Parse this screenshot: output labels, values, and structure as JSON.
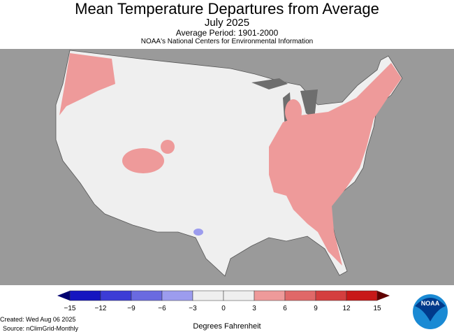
{
  "title": "Mean Temperature Departures from Average",
  "subtitle": "July 2025",
  "period": "Average Period: 1901-2000",
  "org": "NOAA's National Centers for Environmental Information",
  "legend": {
    "ticks": [
      "−15",
      "−12",
      "−9",
      "−6",
      "−3",
      "0",
      "3",
      "6",
      "9",
      "12",
      "15"
    ],
    "colors": [
      "#1515c0",
      "#3c3cd6",
      "#6a6ae0",
      "#9c9cee",
      "#efefef",
      "#efefef",
      "#ee9a9a",
      "#e06868",
      "#d43e3e",
      "#c81818"
    ],
    "low_arrow": "#000070",
    "high_arrow": "#600000",
    "units": "Degrees Fahrenheit"
  },
  "created": "Created: Wed Aug 06 2025",
  "source": "Source: nClimGrid-Monthly",
  "logo_text": "NOAA"
}
